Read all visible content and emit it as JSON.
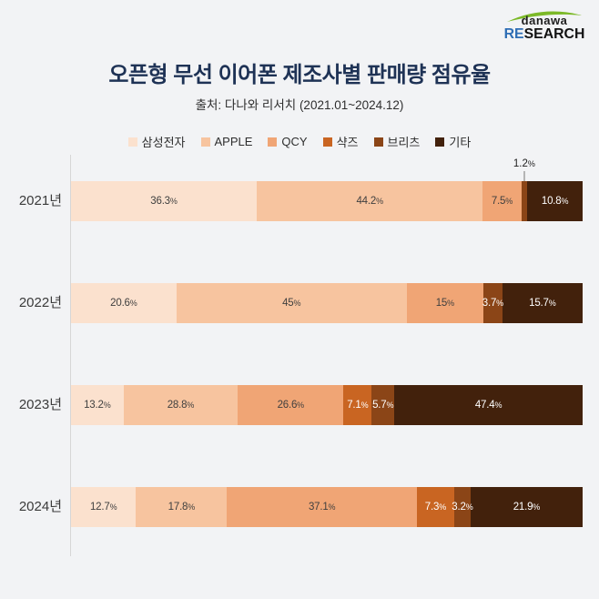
{
  "logo": {
    "brand": "danawa",
    "research_prefix": "RE",
    "research_suffix": "SEARCH",
    "swoosh_color": "#7cb928",
    "prefix_color": "#2e6db4"
  },
  "header": {
    "title": "오픈형 무선 이어폰 제조사별 판매량 점유율",
    "subtitle": "출처: 다나와 리서치 (2021.01~2024.12)"
  },
  "legend": [
    {
      "label": "삼성전자",
      "color": "#fbe1ce"
    },
    {
      "label": "APPLE",
      "color": "#f7c49f"
    },
    {
      "label": "QCY",
      "color": "#f0a575"
    },
    {
      "label": "샥즈",
      "color": "#c96522"
    },
    {
      "label": "브리츠",
      "color": "#8b4517"
    },
    {
      "label": "기타",
      "color": "#42210c"
    }
  ],
  "colors": {
    "background": "#f2f3f5",
    "title": "#1e3255",
    "axis_line": "#d6d6d6",
    "label_dark": "#3f3f3f",
    "label_light": "#ffffff"
  },
  "chart_data": {
    "type": "bar",
    "orientation": "horizontal",
    "stacked": true,
    "unit": "%",
    "categories": [
      "2021년",
      "2022년",
      "2023년",
      "2024년"
    ],
    "series_names": [
      "삼성전자",
      "APPLE",
      "QCY",
      "샥즈",
      "브리츠",
      "기타"
    ],
    "rows": [
      {
        "category": "2021년",
        "segments": [
          {
            "series": "삼성전자",
            "value": 36.3,
            "label": "36.3%"
          },
          {
            "series": "APPLE",
            "value": 44.2,
            "label": "44.2%"
          },
          {
            "series": "QCY",
            "value": 7.5,
            "label": "7.5%"
          },
          {
            "series": "브리츠",
            "value": 1.2,
            "label": "",
            "callout": "1.2%"
          },
          {
            "series": "기타",
            "value": 10.8,
            "label": "10.8%"
          }
        ]
      },
      {
        "category": "2022년",
        "segments": [
          {
            "series": "삼성전자",
            "value": 20.6,
            "label": "20.6%"
          },
          {
            "series": "APPLE",
            "value": 45,
            "label": "45%"
          },
          {
            "series": "QCY",
            "value": 15,
            "label": "15%"
          },
          {
            "series": "브리츠",
            "value": 3.7,
            "label": "3.7%"
          },
          {
            "series": "기타",
            "value": 15.7,
            "label": "15.7%"
          }
        ]
      },
      {
        "category": "2023년",
        "segments": [
          {
            "series": "삼성전자",
            "value": 13.2,
            "label": "13.2%"
          },
          {
            "series": "APPLE",
            "value": 28.8,
            "label": "28.8%"
          },
          {
            "series": "QCY",
            "value": 26.6,
            "label": "26.6%"
          },
          {
            "series": "샥즈",
            "value": 7.1,
            "label": "7.1%"
          },
          {
            "series": "브리츠",
            "value": 5.7,
            "label": "5.7%"
          },
          {
            "series": "기타",
            "value": 47.4,
            "label": "47.4%"
          }
        ]
      },
      {
        "category": "2024년",
        "segments": [
          {
            "series": "삼성전자",
            "value": 12.7,
            "label": "12.7%"
          },
          {
            "series": "APPLE",
            "value": 17.8,
            "label": "17.8%"
          },
          {
            "series": "QCY",
            "value": 37.1,
            "label": "37.1%"
          },
          {
            "series": "샥즈",
            "value": 7.3,
            "label": "7.3%"
          },
          {
            "series": "브리츠",
            "value": 3.2,
            "label": "3.2%"
          },
          {
            "series": "기타",
            "value": 21.9,
            "label": "21.9%"
          }
        ]
      }
    ]
  }
}
